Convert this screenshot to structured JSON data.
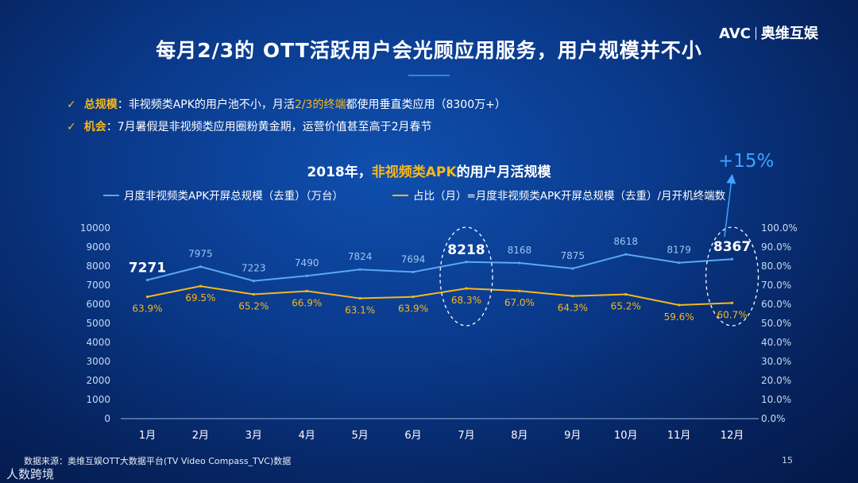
{
  "slide": {
    "title": "每月2/3的 OTT活跃用户会光顾应用服务，用户规模并不小",
    "logo_left": "AVC",
    "logo_right": "奥维互娱",
    "page_number": "15",
    "source": "数据来源：奥维互娱OTT大数据平台(TV Video Compass_TVC)数据",
    "corner_brand": "人数跨境"
  },
  "bullets": [
    {
      "check": "✓",
      "keyword": "总规模",
      "sep": "：",
      "text_a": "非视频类APK的用户池不小，月活",
      "highlight": "2/3的终端",
      "text_b": "都使用垂直类应用（8300万+）"
    },
    {
      "check": "✓",
      "keyword": "机会",
      "sep": "：",
      "text_a": "7月暑假是非视频类应用圈粉黄金期，运营价值甚至高于2月春节",
      "highlight": "",
      "text_b": ""
    }
  ],
  "chart_title": {
    "prefix": "2018年，",
    "highlight": "非视频类APK",
    "suffix": "的用户月活规模"
  },
  "growth_label": "+15%",
  "chart_data": {
    "type": "line",
    "title": "2018年，非视频类APK的用户月活规模",
    "categories": [
      "1月",
      "2月",
      "3月",
      "4月",
      "5月",
      "6月",
      "7月",
      "8月",
      "9月",
      "10月",
      "11月",
      "12月"
    ],
    "series": [
      {
        "name": "月度非视频类APK开屏总规模（去重）（万台）",
        "axis": "left",
        "color": "#58a8f5",
        "values": [
          7271,
          7975,
          7223,
          7490,
          7824,
          7694,
          8218,
          8168,
          7875,
          8618,
          8179,
          8367
        ],
        "labels": [
          "7271",
          "7975",
          "7223",
          "7490",
          "7824",
          "7694",
          "8218",
          "8168",
          "7875",
          "8618",
          "8179",
          "8367"
        ]
      },
      {
        "name": "占比（月）=月度非视频类APK开屏总规模（去重）/月开机终端数",
        "axis": "right",
        "color": "#f5b81c",
        "values": [
          63.9,
          69.5,
          65.2,
          66.9,
          63.1,
          63.9,
          68.3,
          67.0,
          64.3,
          65.2,
          59.6,
          60.7
        ],
        "labels": [
          "63.9%",
          "69.5%",
          "65.2%",
          "66.9%",
          "63.1%",
          "63.9%",
          "68.3%",
          "67.0%",
          "64.3%",
          "65.2%",
          "59.6%",
          "60.7%"
        ]
      }
    ],
    "left_axis": {
      "ylim": [
        0,
        10000
      ],
      "ticks": [
        "0",
        "1000",
        "2000",
        "3000",
        "4000",
        "5000",
        "6000",
        "7000",
        "8000",
        "9000",
        "10000"
      ]
    },
    "right_axis": {
      "ylim": [
        0,
        100
      ],
      "ticks": [
        "0.0%",
        "10.0%",
        "20.0%",
        "30.0%",
        "40.0%",
        "50.0%",
        "60.0%",
        "70.0%",
        "80.0%",
        "90.0%",
        "100.0%"
      ]
    },
    "highlighted_points": [
      "1月",
      "7月",
      "12月"
    ],
    "circled_months": [
      "7月",
      "12月"
    ],
    "grid": false,
    "legend_position": "top"
  },
  "colors": {
    "accent": "#f5b81c",
    "line_blue": "#58a8f5",
    "label_blue": "#9cc6f2"
  }
}
